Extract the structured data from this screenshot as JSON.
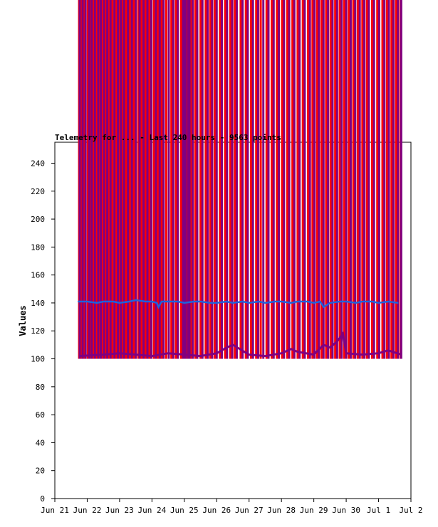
{
  "chart_data": {
    "type": "line",
    "title": "Telemetry for ... - Last 240 hours - 9563 points",
    "ylabel": "Values",
    "xlabel": "",
    "ylim": [
      0,
      255
    ],
    "y_ticks": [
      0,
      20,
      40,
      60,
      80,
      100,
      120,
      140,
      160,
      180,
      200,
      220,
      240
    ],
    "x_ticks": [
      "Jun 21",
      "Jun 22",
      "Jun 23",
      "Jun 24",
      "Jun 25",
      "Jun 26",
      "Jun 27",
      "Jun 28",
      "Jun 29",
      "Jun 30",
      "Jul 1",
      "Jul 2"
    ],
    "x_range_days": [
      0,
      11
    ],
    "grid": false,
    "colors": {
      "series_red": "#ff0000",
      "series_purple": "#800080",
      "series_blue": "#1e64dc"
    },
    "series": [
      {
        "name": "",
        "color_key": "series_red",
        "x": [
          0.75,
          0.82,
          0.9,
          1.02,
          1.1,
          1.18,
          1.3,
          1.38,
          1.46,
          1.58,
          1.66,
          1.78,
          1.9,
          2.0,
          2.08,
          2.2,
          2.32,
          2.44,
          2.58,
          2.68,
          2.8,
          2.92,
          3.06,
          3.18,
          3.3,
          3.44,
          3.6,
          3.74,
          3.9,
          4.08,
          4.2,
          4.34,
          4.5,
          4.66,
          4.8,
          4.94,
          5.1,
          5.26,
          5.42,
          5.56,
          5.74,
          5.9,
          6.06,
          6.22,
          6.36,
          6.54,
          6.7,
          6.86,
          7.02,
          7.18,
          7.34,
          7.5,
          7.66,
          7.82,
          7.96,
          8.1,
          8.24,
          8.38,
          8.52,
          8.66,
          8.8,
          8.94,
          9.08,
          9.22,
          9.36,
          9.5,
          9.64,
          9.8,
          9.96,
          10.12,
          10.26,
          10.4,
          10.54,
          10.68
        ],
        "y_low": 100,
        "y_high": 255,
        "style": "spikes"
      },
      {
        "name": "",
        "color_key": "series_purple",
        "x": [
          0.77,
          0.86,
          0.95,
          1.06,
          1.14,
          1.24,
          1.34,
          1.42,
          1.52,
          1.62,
          1.72,
          1.84,
          1.95,
          2.04,
          2.14,
          2.26,
          2.38,
          2.5,
          2.62,
          2.74,
          2.86,
          2.98,
          3.12,
          3.24,
          3.36,
          3.52,
          3.66,
          3.8,
          3.96,
          4.0,
          4.04,
          4.12,
          4.16,
          4.26,
          4.4,
          4.56,
          4.72,
          4.86,
          5.0,
          5.16,
          5.32,
          5.48,
          5.62,
          5.8,
          5.96,
          6.12,
          6.28,
          6.44,
          6.6,
          6.76,
          6.92,
          7.08,
          7.24,
          7.4,
          7.56,
          7.72,
          7.88,
          8.02,
          8.16,
          8.3,
          8.44,
          8.58,
          8.72,
          8.86,
          9.0,
          9.14,
          9.28,
          9.42,
          9.56,
          9.7,
          9.86,
          10.02,
          10.18,
          10.32,
          10.46,
          10.6,
          10.7
        ],
        "y_low": 100,
        "y_high": 255,
        "style": "spikes"
      },
      {
        "name": "",
        "color_key": "series_purple",
        "x": [
          0.75,
          1.5,
          2.0,
          2.5,
          3.0,
          3.5,
          4.0,
          4.5,
          5.0,
          5.3,
          5.5,
          6.0,
          6.5,
          7.0,
          7.3,
          7.5,
          8.0,
          8.3,
          8.5,
          8.7,
          8.9,
          9.0,
          9.5,
          10.0,
          10.3,
          10.7
        ],
        "y": [
          102,
          103,
          104,
          103,
          102,
          104,
          103,
          102,
          104,
          108,
          110,
          103,
          102,
          104,
          107,
          105,
          103,
          110,
          108,
          112,
          118,
          104,
          103,
          104,
          106,
          103
        ],
        "style": "baseline"
      },
      {
        "name": "",
        "color_key": "series_blue",
        "x": [
          0.72,
          1.0,
          1.3,
          1.5,
          1.8,
          2.0,
          2.3,
          2.5,
          2.8,
          3.0,
          3.15,
          3.2,
          3.3,
          3.5,
          3.8,
          4.0,
          4.3,
          4.5,
          4.8,
          5.0,
          5.3,
          5.5,
          5.8,
          6.0,
          6.3,
          6.5,
          6.8,
          7.0,
          7.3,
          7.5,
          7.8,
          8.0,
          8.2,
          8.3,
          8.5,
          8.8,
          9.0,
          9.3,
          9.5,
          9.8,
          10.0,
          10.3,
          10.6
        ],
        "y": [
          141,
          141,
          140,
          141,
          141,
          140,
          141,
          142,
          141,
          141,
          140,
          137,
          141,
          141,
          141,
          140,
          141,
          141,
          140,
          140,
          141,
          140,
          141,
          140,
          141,
          140,
          141,
          141,
          140,
          141,
          141,
          140,
          141,
          137,
          140,
          141,
          141,
          140,
          141,
          141,
          140,
          141,
          140
        ],
        "style": "line"
      }
    ]
  }
}
